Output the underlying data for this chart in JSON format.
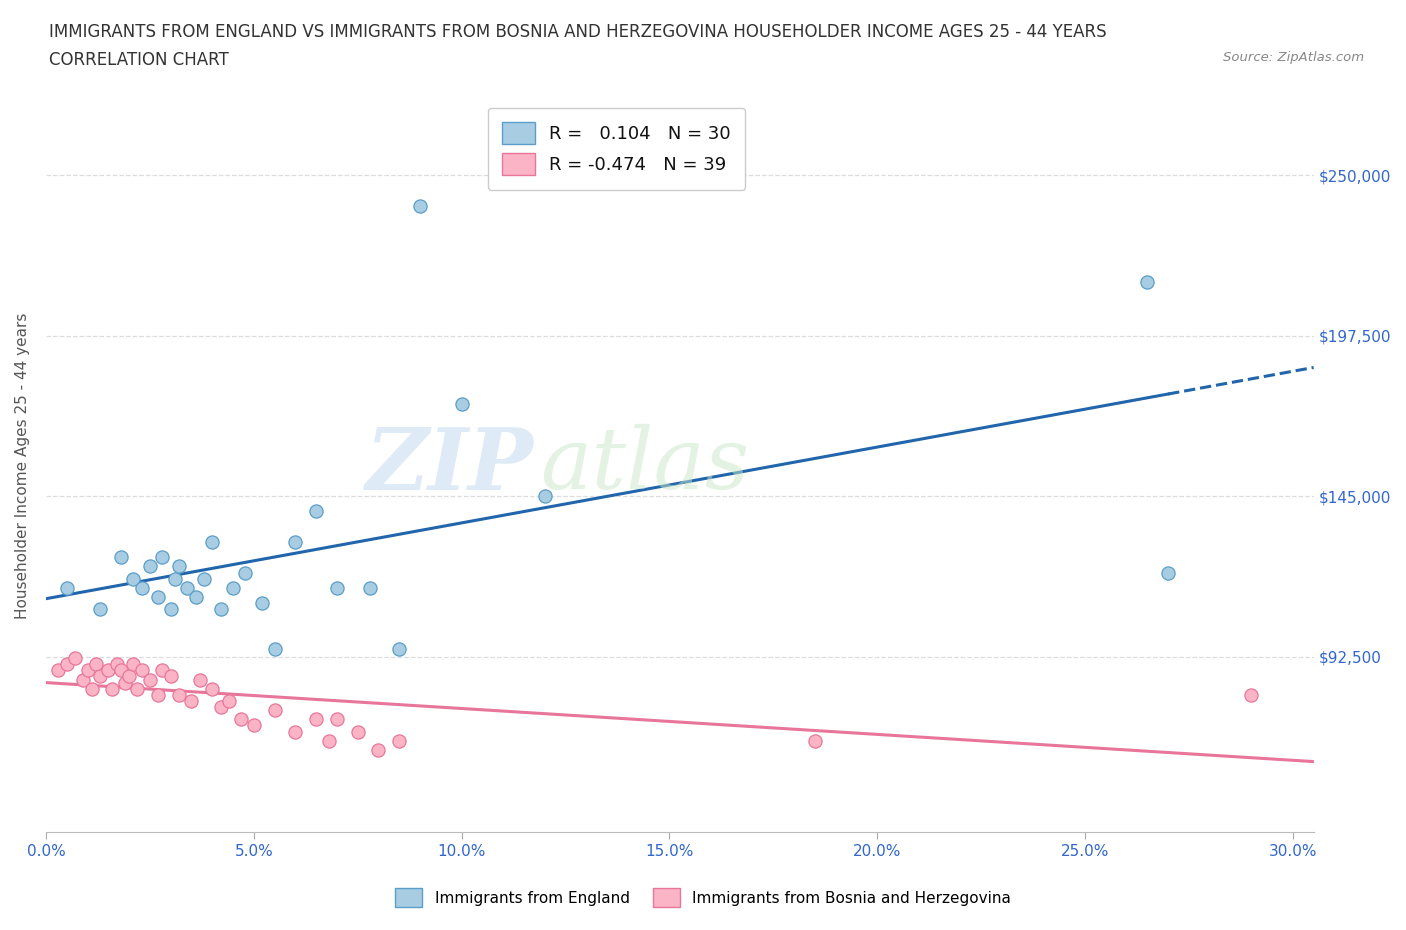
{
  "title_line1": "IMMIGRANTS FROM ENGLAND VS IMMIGRANTS FROM BOSNIA AND HERZEGOVINA HOUSEHOLDER INCOME AGES 25 - 44 YEARS",
  "title_line2": "CORRELATION CHART",
  "source_text": "Source: ZipAtlas.com",
  "ylabel": "Householder Income Ages 25 - 44 years",
  "watermark_zip": "ZIP",
  "watermark_atlas": "atlas",
  "legend_R1_val": "0.104",
  "legend_N1_val": "30",
  "legend_R2_val": "-0.474",
  "legend_N2_val": "39",
  "color_england": "#a8cde3",
  "color_bosnia": "#fbb4c6",
  "color_england_edge": "#5b9ec9",
  "color_bosnia_edge": "#e8769a",
  "color_england_line": "#2166ac",
  "color_bosnia_line": "#e8769a",
  "xlim_min": 0.0,
  "xlim_max": 0.305,
  "ylim_min": 35000,
  "ylim_max": 275000,
  "ytick_vals": [
    92500,
    145000,
    197500,
    250000
  ],
  "ytick_labels": [
    "$92,500",
    "$145,000",
    "$197,500",
    "$250,000"
  ],
  "xtick_vals": [
    0.0,
    0.05,
    0.1,
    0.15,
    0.2,
    0.25,
    0.3
  ],
  "xtick_labels": [
    "0.0%",
    "5.0%",
    "10.0%",
    "15.0%",
    "20.0%",
    "25.0%",
    "30.0%"
  ],
  "england_x": [
    0.005,
    0.013,
    0.018,
    0.021,
    0.023,
    0.025,
    0.027,
    0.028,
    0.03,
    0.031,
    0.032,
    0.034,
    0.036,
    0.038,
    0.04,
    0.042,
    0.045,
    0.048,
    0.052,
    0.055,
    0.06,
    0.065,
    0.07,
    0.078,
    0.085,
    0.09,
    0.1,
    0.12,
    0.265,
    0.27
  ],
  "england_y": [
    115000,
    108000,
    125000,
    118000,
    115000,
    122000,
    112000,
    125000,
    108000,
    118000,
    122000,
    115000,
    112000,
    118000,
    130000,
    108000,
    115000,
    120000,
    110000,
    95000,
    130000,
    140000,
    115000,
    115000,
    95000,
    240000,
    175000,
    145000,
    215000,
    120000
  ],
  "bosnia_x": [
    0.003,
    0.005,
    0.007,
    0.009,
    0.01,
    0.011,
    0.012,
    0.013,
    0.015,
    0.016,
    0.017,
    0.018,
    0.019,
    0.02,
    0.021,
    0.022,
    0.023,
    0.025,
    0.027,
    0.028,
    0.03,
    0.032,
    0.035,
    0.037,
    0.04,
    0.042,
    0.044,
    0.047,
    0.05,
    0.055,
    0.06,
    0.065,
    0.068,
    0.07,
    0.075,
    0.08,
    0.085,
    0.185,
    0.29
  ],
  "bosnia_y": [
    88000,
    90000,
    92000,
    85000,
    88000,
    82000,
    90000,
    86000,
    88000,
    82000,
    90000,
    88000,
    84000,
    86000,
    90000,
    82000,
    88000,
    85000,
    80000,
    88000,
    86000,
    80000,
    78000,
    85000,
    82000,
    76000,
    78000,
    72000,
    70000,
    75000,
    68000,
    72000,
    65000,
    72000,
    68000,
    62000,
    65000,
    65000,
    80000
  ],
  "background_color": "#ffffff",
  "grid_color": "#dddddd",
  "title_fontsize": 12,
  "axis_label_fontsize": 11,
  "tick_fontsize": 11,
  "tick_color": "#3366cc",
  "label_color": "#555555"
}
